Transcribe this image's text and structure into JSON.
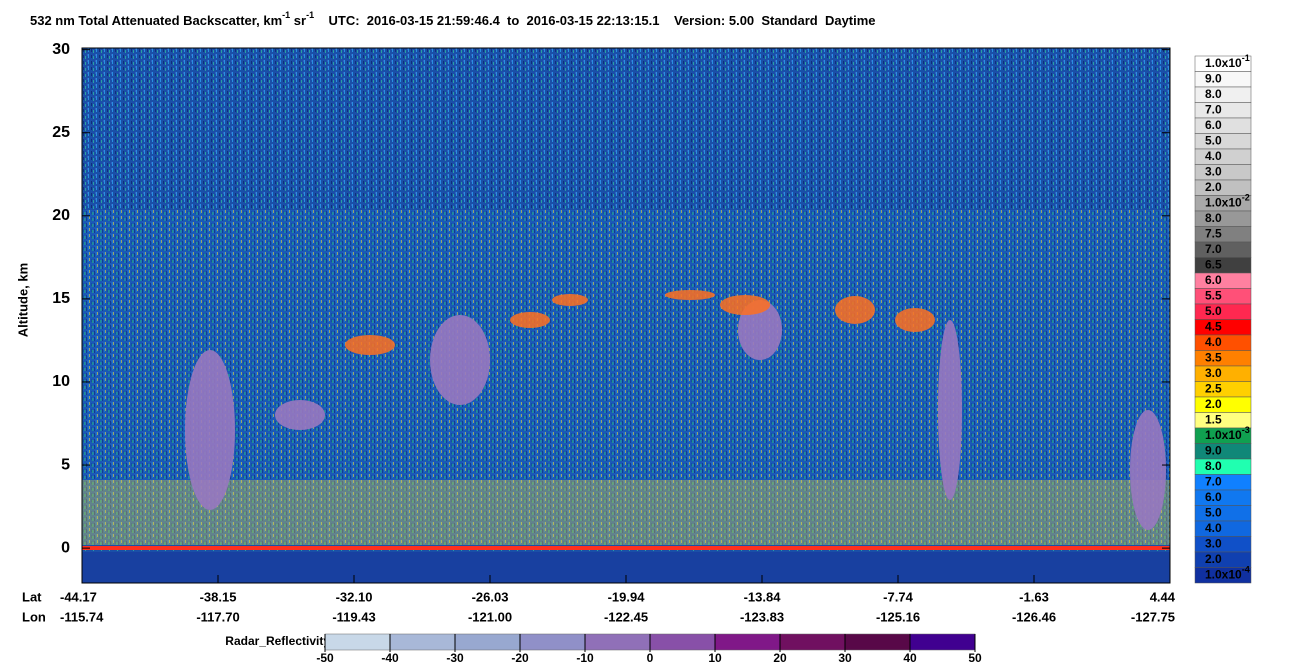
{
  "chart_data": {
    "type": "heatmap",
    "title": [
      "532 nm Total Attenuated Backscatter, km",
      "-1",
      " sr",
      "-1",
      "    UTC:  2016-03-15 21:59:46.4  to  2016-03-15 22:13:15.1    Version: 5.00  Standard  Daytime"
    ],
    "y_label": "Altitude, km",
    "ylim": [
      -2.1,
      30.1
    ],
    "yticks": [
      0,
      5,
      10,
      15,
      20,
      25,
      30
    ],
    "x_rows": [
      {
        "name": "Lat",
        "categories": [
          "-44.17",
          "-38.15",
          "-32.10",
          "-26.03",
          "-19.94",
          "-13.84",
          "-7.74",
          "-1.63",
          "4.44"
        ]
      },
      {
        "name": "Lon",
        "categories": [
          "-115.74",
          "-117.70",
          "-119.43",
          "-121.00",
          "-122.45",
          "-123.83",
          "-125.16",
          "-126.46",
          "-127.75"
        ]
      }
    ],
    "colorbar": {
      "labels": [
        {
          "base": "1.0x10",
          "exp": "-1"
        },
        "9.0",
        "8.0",
        "7.0",
        "6.0",
        "5.0",
        "4.0",
        "3.0",
        "2.0",
        {
          "base": "1.0x10",
          "exp": "-2"
        },
        "8.0",
        "7.5",
        "7.0",
        "6.5",
        "6.0",
        "5.5",
        "5.0",
        "4.5",
        "4.0",
        "3.5",
        "3.0",
        "2.5",
        "2.0",
        "1.5",
        {
          "base": "1.0x10",
          "exp": "-3"
        },
        "9.0",
        "8.0",
        "7.0",
        "6.0",
        "5.0",
        "4.0",
        "3.0",
        "2.0",
        {
          "base": "1.0x10",
          "exp": "-4"
        }
      ],
      "colors": [
        "#ffffff",
        "#f8f8f8",
        "#f0f0f0",
        "#e8e8e8",
        "#e0e0e0",
        "#d8d8d8",
        "#d0d0d0",
        "#c8c8c8",
        "#c0c0c0",
        "#a8a8a8",
        "#989898",
        "#808080",
        "#606060",
        "#404040",
        "#ff80a0",
        "#ff5078",
        "#ff2850",
        "#ff0000",
        "#ff5000",
        "#ff8000",
        "#ffb000",
        "#ffd000",
        "#ffff00",
        "#ffff80",
        "#10a050",
        "#108878",
        "#20ffb0",
        "#1080ff",
        "#1078f0",
        "#1070e8",
        "#1068e0",
        "#1050c8",
        "#1040b0",
        "#1030a0"
      ]
    },
    "radar_colorbar": {
      "name": "Radar_Reflectivity",
      "ticks": [
        -50,
        -40,
        -30,
        -20,
        -10,
        0,
        10,
        20,
        30,
        40,
        50
      ],
      "colors": [
        "#c8d8e8",
        "#a8b8d8",
        "#98a8d0",
        "#9090c8",
        "#9070b8",
        "#8850a8",
        "#801888",
        "#701060",
        "#580848",
        "#400090"
      ]
    }
  }
}
